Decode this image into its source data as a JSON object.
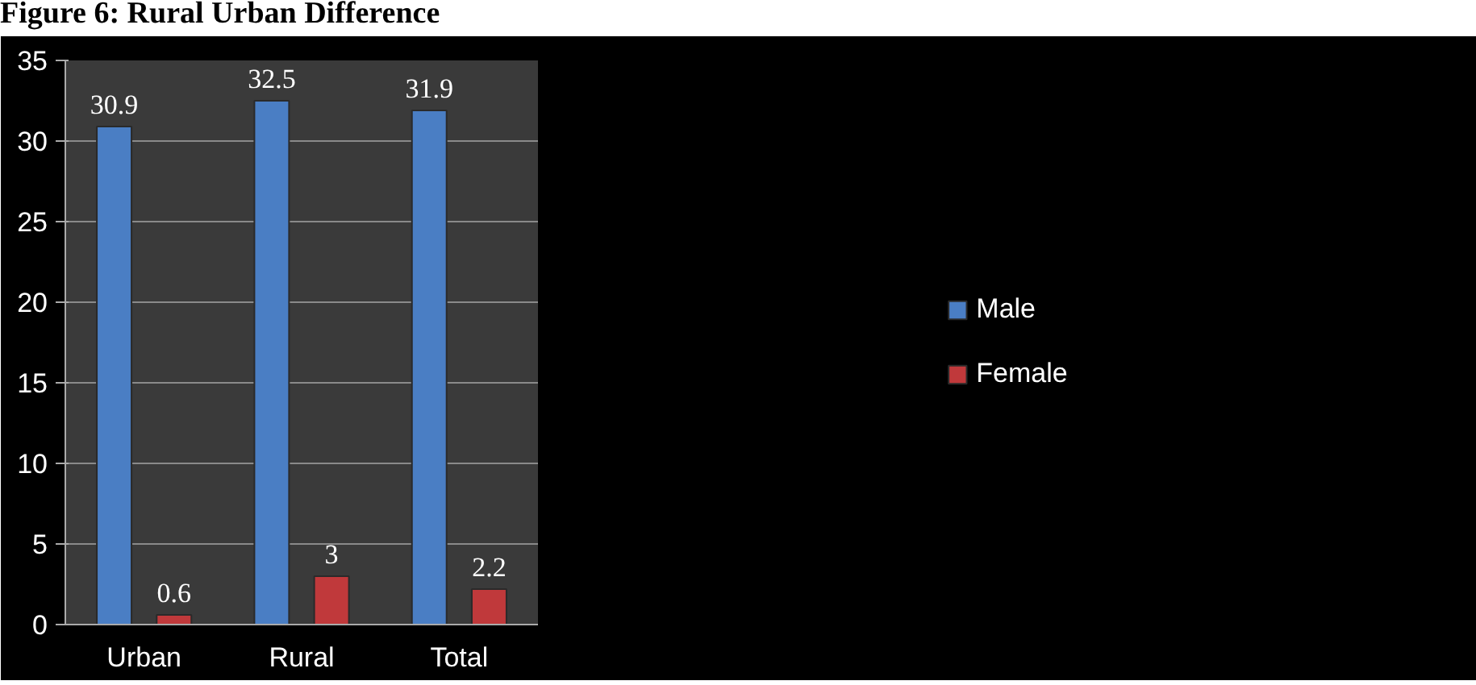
{
  "chart_data": {
    "type": "bar",
    "title": "Figure 6: Rural Urban Difference",
    "categories": [
      "Urban",
      "Rural",
      "Total"
    ],
    "series": [
      {
        "name": "Male",
        "color": "#4a7ec4",
        "values": [
          30.9,
          32.5,
          31.9
        ]
      },
      {
        "name": "Female",
        "color": "#c0393b",
        "values": [
          0.6,
          3,
          2.2
        ]
      }
    ],
    "ylim": [
      0,
      35
    ],
    "yticks": [
      0,
      5,
      10,
      15,
      20,
      25,
      30,
      35
    ],
    "grid": "y",
    "legend": "right",
    "data_labels": true
  }
}
